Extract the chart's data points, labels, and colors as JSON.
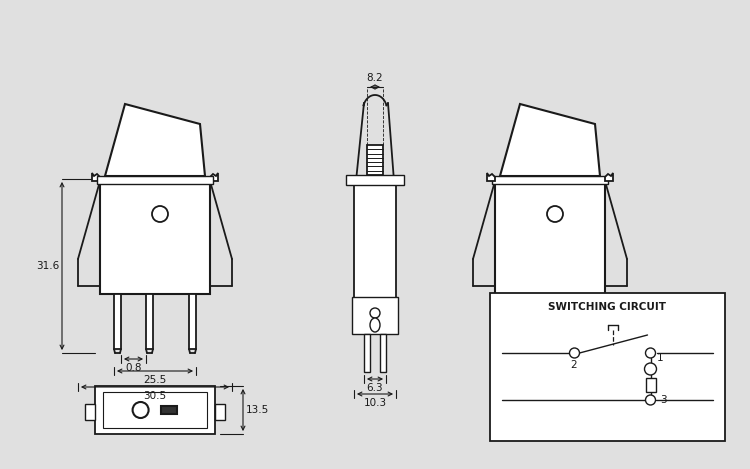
{
  "bg_color": "#e0e0e0",
  "line_color": "#1a1a1a",
  "text_color": "#1a1a1a",
  "dims": {
    "w305": "30.5",
    "w255": "25.5",
    "w08": "0.8",
    "h316": "31.6",
    "h135": "13.5",
    "s82": "8.2",
    "s63": "6.3",
    "s103": "10.3"
  },
  "sc_title": "SWITCHING CIRCUIT",
  "labels": [
    "1",
    "2",
    "3"
  ]
}
